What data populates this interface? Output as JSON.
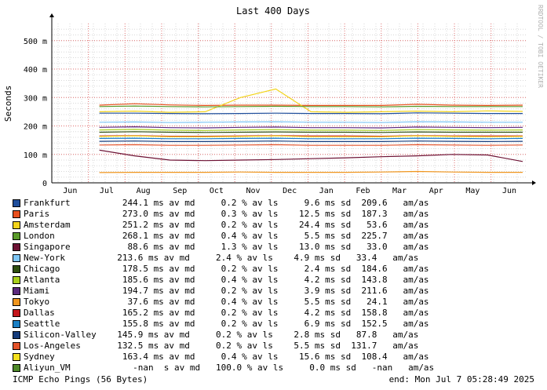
{
  "chart_data": {
    "type": "line",
    "title": "Last 400 Days",
    "ylabel": "Seconds",
    "watermark": "RRDTOOL / TOBI OETIKER",
    "ylim_ms": [
      0,
      560
    ],
    "yticks": [
      {
        "value": 0,
        "label": "0"
      },
      {
        "value": 100,
        "label": "100 m"
      },
      {
        "value": 200,
        "label": "200 m"
      },
      {
        "value": 300,
        "label": "300 m"
      },
      {
        "value": 400,
        "label": "400 m"
      },
      {
        "value": 500,
        "label": "500 m"
      }
    ],
    "x_months": [
      "Jun",
      "Jul",
      "Aug",
      "Sep",
      "Oct",
      "Nov",
      "Dec",
      "Jan",
      "Feb",
      "Mar",
      "Apr",
      "May",
      "Jun"
    ],
    "grid": true,
    "colors": {
      "major_grid": "#e07070",
      "minor_grid": "#d8d8d8",
      "axis": "#000000"
    },
    "series": [
      {
        "name": "Frankfurt",
        "color": "#1f4e9c",
        "values": [
          245,
          245,
          244,
          243,
          244,
          245,
          244,
          244,
          243,
          246,
          245,
          244,
          244
        ]
      },
      {
        "name": "Paris",
        "color": "#e8501e",
        "values": [
          273,
          278,
          274,
          272,
          273,
          273,
          272,
          272,
          272,
          276,
          273,
          272,
          273
        ]
      },
      {
        "name": "Amsterdam",
        "color": "#f3d41c",
        "values": [
          250,
          252,
          248,
          250,
          300,
          330,
          250,
          248,
          250,
          252,
          250,
          253,
          251
        ]
      },
      {
        "name": "London",
        "color": "#5a9b2a",
        "values": [
          268,
          270,
          268,
          267,
          268,
          269,
          268,
          268,
          267,
          269,
          268,
          268,
          268
        ]
      },
      {
        "name": "Singapore",
        "color": "#6d1234",
        "values": [
          115,
          95,
          80,
          78,
          80,
          82,
          85,
          88,
          92,
          95,
          100,
          98,
          75
        ]
      },
      {
        "name": "New-York",
        "color": "#7ec6f5",
        "values": [
          213,
          214,
          212,
          213,
          214,
          215,
          213,
          213,
          212,
          215,
          214,
          213,
          213
        ]
      },
      {
        "name": "Chicago",
        "color": "#2f4f0f",
        "values": [
          178,
          180,
          178,
          177,
          178,
          179,
          178,
          178,
          177,
          179,
          178,
          178,
          178
        ]
      },
      {
        "name": "Atlanta",
        "color": "#a8d01e",
        "values": [
          186,
          188,
          185,
          184,
          186,
          187,
          185,
          185,
          184,
          187,
          186,
          185,
          186
        ]
      },
      {
        "name": "Miami",
        "color": "#5b2a7e",
        "values": [
          195,
          197,
          194,
          193,
          195,
          196,
          194,
          194,
          193,
          196,
          195,
          194,
          195
        ]
      },
      {
        "name": "Tokyo",
        "color": "#f0961e",
        "values": [
          36,
          37,
          37,
          37,
          38,
          37,
          37,
          37,
          38,
          40,
          38,
          37,
          37
        ]
      },
      {
        "name": "Dallas",
        "color": "#c4161c",
        "values": [
          165,
          166,
          164,
          164,
          165,
          166,
          165,
          165,
          164,
          166,
          165,
          165,
          165
        ]
      },
      {
        "name": "Seattle",
        "color": "#1a7fc4",
        "values": [
          156,
          157,
          155,
          155,
          156,
          157,
          155,
          155,
          155,
          157,
          156,
          155,
          156
        ]
      },
      {
        "name": "Silicon-Valley",
        "color": "#153c7c",
        "values": [
          146,
          147,
          145,
          145,
          146,
          147,
          145,
          145,
          145,
          147,
          146,
          145,
          146
        ]
      },
      {
        "name": "Los-Angeles",
        "color": "#e3532b",
        "values": [
          133,
          134,
          132,
          132,
          133,
          134,
          132,
          132,
          132,
          134,
          133,
          132,
          133
        ]
      },
      {
        "name": "Sydney",
        "color": "#f5e11e",
        "values": [
          163,
          165,
          162,
          162,
          163,
          165,
          162,
          162,
          162,
          165,
          163,
          162,
          163
        ]
      },
      {
        "name": "Aliyun_VM",
        "color": "#4f8a2a",
        "values": []
      }
    ]
  },
  "legend": [
    {
      "color": "#1f4e9c",
      "text": "Frankfurt          244.1 ms av md     0.2 % av ls     9.6 ms sd  209.6   am/as"
    },
    {
      "color": "#e8501e",
      "text": "Paris              273.0 ms av md     0.3 % av ls    12.5 ms sd  187.3   am/as"
    },
    {
      "color": "#f3d41c",
      "text": "Amsterdam          251.2 ms av md     0.2 % av ls    24.4 ms sd   53.6   am/as"
    },
    {
      "color": "#5a9b2a",
      "text": "London             268.1 ms av md     0.4 % av ls     5.5 ms sd  225.7   am/as"
    },
    {
      "color": "#6d1234",
      "text": "Singapore           88.6 ms av md     1.3 % av ls    13.0 ms sd   33.0   am/as"
    },
    {
      "color": "#7ec6f5",
      "text": "New-York          213.6 ms av md     2.4 % av ls    4.9 ms sd   33.4   am/as"
    },
    {
      "color": "#2f4f0f",
      "text": "Chicago            178.5 ms av md     0.2 % av ls     2.4 ms sd  184.6   am/as"
    },
    {
      "color": "#a8d01e",
      "text": "Atlanta            185.6 ms av md     0.4 % av ls     4.2 ms sd  143.8   am/as"
    },
    {
      "color": "#5b2a7e",
      "text": "Miami              194.7 ms av md     0.2 % av ls     3.9 ms sd  211.6   am/as"
    },
    {
      "color": "#f0961e",
      "text": "Tokyo               37.6 ms av md     0.4 % av ls     5.5 ms sd   24.1   am/as"
    },
    {
      "color": "#c4161c",
      "text": "Dallas             165.2 ms av md     0.2 % av ls     4.2 ms sd  158.8   am/as"
    },
    {
      "color": "#1a7fc4",
      "text": "Seattle            155.8 ms av md     0.2 % av ls     6.9 ms sd  152.5   am/as"
    },
    {
      "color": "#153c7c",
      "text": "Silicon-Valley    145.9 ms av md     0.2 % av ls    2.8 ms sd   87.8   am/as"
    },
    {
      "color": "#e3532b",
      "text": "Los-Angeles       132.5 ms av md     0.2 % av ls    5.5 ms sd  131.7   am/as"
    },
    {
      "color": "#f5e11e",
      "text": "Sydney             163.4 ms av md     0.4 % av ls    15.6 ms sd  108.4   am/as"
    },
    {
      "color": "#4f8a2a",
      "text": "Aliyun_VM            -nan  s av md   100.0 % av ls     0.0 ms sd   -nan   am/as"
    }
  ],
  "footer": {
    "left": "ICMP Echo Pings (56 Bytes)",
    "right": "end: Mon Jul  7 05:28:49 2025"
  }
}
